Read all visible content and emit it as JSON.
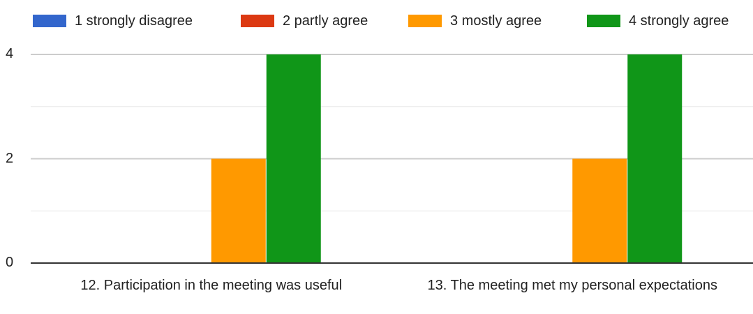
{
  "chart_data": {
    "type": "bar",
    "categories": [
      "12. Participation in the meeting was useful",
      "13. The meeting met my personal expectations"
    ],
    "series": [
      {
        "name": "1 strongly disagree",
        "color": "#3366cc",
        "values": [
          0,
          0
        ]
      },
      {
        "name": "2 partly agree",
        "color": "#dc3912",
        "values": [
          0,
          0
        ]
      },
      {
        "name": "3 mostly agree",
        "color": "#ff9900",
        "values": [
          2,
          2
        ]
      },
      {
        "name": "4 strongly agree",
        "color": "#109618",
        "values": [
          4,
          4
        ]
      }
    ],
    "ylim": [
      0,
      4
    ],
    "yticks": [
      "0",
      "2",
      "4"
    ],
    "grid": true,
    "legend_position": "top"
  }
}
